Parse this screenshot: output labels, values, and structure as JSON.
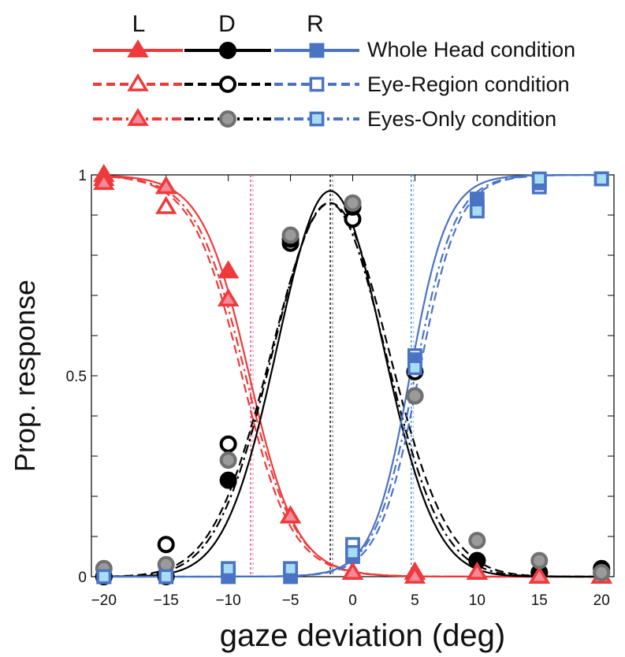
{
  "legend": {
    "column_headers": [
      "L",
      "D",
      "R"
    ],
    "rows": [
      {
        "label": "Whole Head condition",
        "style": "solid",
        "marker_fill": "filled"
      },
      {
        "label": "Eye-Region condition",
        "style": "dashed",
        "marker_fill": "open"
      },
      {
        "label": "Eyes-Only condition",
        "style": "dashdot",
        "marker_fill": "light"
      }
    ]
  },
  "colors": {
    "L": "#ee3a3a",
    "L_light": "#f28a9a",
    "D": "#000000",
    "D_light": "#9a9a9a",
    "R": "#4a73c4",
    "R_light": "#a8dcf2",
    "open_fill": "#ffffff",
    "grey_edge": "#707070"
  },
  "chart_data": {
    "type": "line",
    "xlabel": "gaze deviation (deg)",
    "ylabel": "Prop. response",
    "xlim": [
      -21,
      21
    ],
    "ylim": [
      0,
      1
    ],
    "x_ticks": [
      -20,
      -15,
      -10,
      -5,
      0,
      5,
      10,
      15,
      20
    ],
    "x_tick_labels": [
      "−20",
      "−15",
      "−10",
      "−5",
      "0",
      "5",
      "10",
      "15",
      "20"
    ],
    "y_ticks": [
      0,
      0.5,
      1
    ],
    "y_tick_labels": [
      "0",
      "0.5",
      "1"
    ],
    "boundaries": [
      {
        "x": -8.2,
        "response": "L"
      },
      {
        "x": -1.8,
        "response": "D"
      },
      {
        "x": 4.7,
        "response": "R"
      }
    ],
    "x": [
      -20,
      -15,
      -10,
      -5,
      0,
      5,
      10,
      15,
      20
    ],
    "series": [
      {
        "response": "L",
        "condition": "Whole Head condition",
        "marker": "triangle",
        "values": [
          1.0,
          0.97,
          0.76,
          0.15,
          0.01,
          0.01,
          0.01,
          0.0,
          0.0
        ],
        "fit": {
          "kind": "logistic_decreasing",
          "center": -8.3,
          "width": 1.9
        }
      },
      {
        "response": "L",
        "condition": "Eye-Region condition",
        "marker": "triangle",
        "values": [
          0.99,
          0.92,
          0.69,
          0.15,
          0.01,
          0.01,
          0.01,
          0.0,
          0.0
        ],
        "fit": {
          "kind": "logistic_decreasing",
          "center": -8.9,
          "width": 2.0
        }
      },
      {
        "response": "L",
        "condition": "Eyes-Only condition",
        "marker": "triangle",
        "values": [
          0.98,
          0.97,
          0.69,
          0.15,
          0.01,
          0.0,
          0.01,
          0.0,
          0.0
        ],
        "fit": {
          "kind": "logistic_decreasing",
          "center": -8.6,
          "width": 2.0
        }
      },
      {
        "response": "D",
        "condition": "Whole Head condition",
        "marker": "circle",
        "values": [
          0.0,
          0.0,
          0.24,
          0.84,
          0.92,
          0.45,
          0.04,
          0.01,
          0.02
        ],
        "fit": {
          "kind": "gaussian",
          "peak": 0.96,
          "mean": -1.8,
          "sd": 4.2
        }
      },
      {
        "response": "D",
        "condition": "Eye-Region condition",
        "marker": "circle",
        "values": [
          0.0,
          0.08,
          0.33,
          0.83,
          0.89,
          0.51,
          0.04,
          0.01,
          0.01
        ],
        "fit": {
          "kind": "gaussian",
          "peak": 0.93,
          "mean": -1.8,
          "sd": 4.7
        }
      },
      {
        "response": "D",
        "condition": "Eyes-Only condition",
        "marker": "circle",
        "values": [
          0.02,
          0.03,
          0.29,
          0.85,
          0.93,
          0.45,
          0.09,
          0.04,
          0.01
        ],
        "fit": {
          "kind": "gaussian",
          "peak": 0.93,
          "mean": -1.9,
          "sd": 4.5
        }
      },
      {
        "response": "R",
        "condition": "Whole Head condition",
        "marker": "square",
        "values": [
          0.0,
          0.0,
          0.0,
          0.0,
          0.05,
          0.54,
          0.94,
          0.98,
          0.99
        ],
        "fit": {
          "kind": "logistic_increasing",
          "center": 4.6,
          "width": 1.5
        }
      },
      {
        "response": "R",
        "condition": "Eye-Region condition",
        "marker": "square",
        "values": [
          0.0,
          0.0,
          0.02,
          0.02,
          0.08,
          0.55,
          0.92,
          0.97,
          0.99
        ],
        "fit": {
          "kind": "logistic_increasing",
          "center": 5.3,
          "width": 1.6
        }
      },
      {
        "response": "R",
        "condition": "Eyes-Only condition",
        "marker": "square",
        "values": [
          0.0,
          0.0,
          0.02,
          0.02,
          0.06,
          0.52,
          0.91,
          0.99,
          0.99
        ],
        "fit": {
          "kind": "logistic_increasing",
          "center": 5.0,
          "width": 1.6
        }
      }
    ]
  }
}
